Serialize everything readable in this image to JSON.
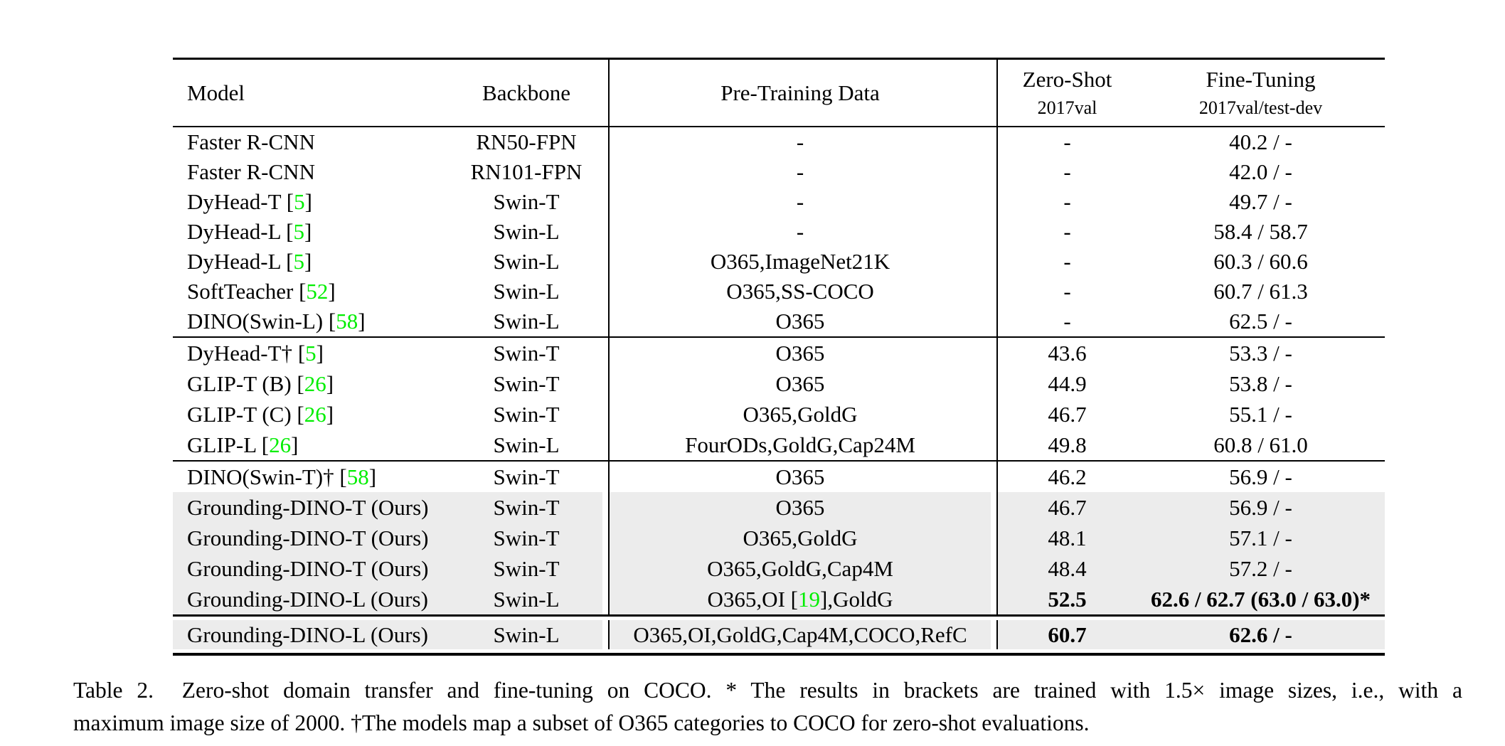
{
  "colors": {
    "citation_green": "#00ee00",
    "highlight": "#ececec"
  },
  "table": {
    "header": {
      "model": "Model",
      "backbone": "Backbone",
      "pretrain": "Pre-Training Data",
      "zeroshot": "Zero-Shot",
      "zeroshot_sub": "2017val",
      "finetune": "Fine-Tuning",
      "finetune_sub": "2017val/test-dev"
    },
    "groups": [
      {
        "rows": [
          {
            "m": "Faster R-CNN",
            "b": "RN50-FPN",
            "p1": "-",
            "zs": "-",
            "ft": "40.2 / -"
          },
          {
            "m": "Faster R-CNN",
            "b": "RN101-FPN",
            "p1": "-",
            "zs": "-",
            "ft": "42.0 / -"
          },
          {
            "m": "DyHead-T ",
            "lb": "[",
            "c": "5",
            "rb": "]",
            "b": "Swin-T",
            "p1": "-",
            "zs": "-",
            "ft": "49.7 / -"
          },
          {
            "m": "DyHead-L ",
            "lb": "[",
            "c": "5",
            "rb": "]",
            "b": "Swin-L",
            "p1": "-",
            "zs": "-",
            "ft": "58.4 / 58.7"
          },
          {
            "m": "DyHead-L ",
            "lb": "[",
            "c": "5",
            "rb": "]",
            "b": "Swin-L",
            "p1": "O365,ImageNet21K",
            "zs": "-",
            "ft": "60.3 / 60.6"
          },
          {
            "m": "SoftTeacher ",
            "lb": "[",
            "c": "52",
            "rb": "]",
            "b": "Swin-L",
            "p1": "O365,SS-COCO",
            "zs": "-",
            "ft": "60.7 / 61.3"
          },
          {
            "m": "DINO(Swin-L) ",
            "lb": "[",
            "c": "58",
            "rb": "]",
            "b": "Swin-L",
            "p1": "O365",
            "zs": "-",
            "ft": "62.5 / -"
          }
        ]
      },
      {
        "rows": [
          {
            "m": "DyHead-T† ",
            "lb": "[",
            "c": "5",
            "rb": "]",
            "b": "Swin-T",
            "p1": "O365",
            "zs": "43.6",
            "ft": "53.3 / -"
          },
          {
            "m": "GLIP-T (B) ",
            "lb": "[",
            "c": "26",
            "rb": "]",
            "b": "Swin-T",
            "p1": "O365",
            "zs": "44.9",
            "ft": "53.8 / -"
          },
          {
            "m": "GLIP-T (C) ",
            "lb": "[",
            "c": "26",
            "rb": "]",
            "b": "Swin-T",
            "p1": "O365,GoldG",
            "zs": "46.7",
            "ft": "55.1 / -"
          },
          {
            "m": "GLIP-L ",
            "lb": "[",
            "c": "26",
            "rb": "]",
            "b": "Swin-L",
            "p1": "FourODs,GoldG,Cap24M",
            "zs": "49.8",
            "ft": "60.8 / 61.0"
          }
        ]
      },
      {
        "rows": [
          {
            "m": "DINO(Swin-T)† ",
            "lb": "[",
            "c": "58",
            "rb": "]",
            "b": "Swin-T",
            "p1": "O365",
            "zs": "46.2",
            "ft": "56.9 / -"
          },
          {
            "m": "Grounding-DINO-T (Ours)",
            "b": "Swin-T",
            "p1": "O365",
            "zs": "46.7",
            "ft": "56.9 / -"
          },
          {
            "m": "Grounding-DINO-T (Ours)",
            "b": "Swin-T",
            "p1": "O365,GoldG",
            "zs": "48.1",
            "ft": "57.1 / -"
          },
          {
            "m": "Grounding-DINO-T (Ours)",
            "b": "Swin-T",
            "p1": "O365,GoldG,Cap4M",
            "zs": "48.4",
            "ft": "57.2 / -"
          },
          {
            "m": "Grounding-DINO-L (Ours)",
            "b": "Swin-L",
            "p1": "O365,OI ",
            "plb": "[",
            "pc": "19",
            "prb": "]",
            "p2": ",GoldG",
            "zs": "52.5",
            "ft": "62.6 / 62.7 (63.0 / 63.0)*"
          }
        ]
      },
      {
        "rows": [
          {
            "m": "Grounding-DINO-L (Ours)",
            "b": "Swin-L",
            "p1": "O365,OI,GoldG,Cap4M,COCO,RefC",
            "zs": "60.7",
            "ft": "62.6 / -"
          }
        ]
      }
    ]
  },
  "caption": {
    "line1": "Table 2.  Zero-shot domain transfer and fine-tuning on COCO. * The results in brackets are trained with 1.5× image sizes, i.e., with a",
    "line2": "maximum image size of 2000. †The models map a subset of O365 categories to COCO for zero-shot evaluations."
  }
}
